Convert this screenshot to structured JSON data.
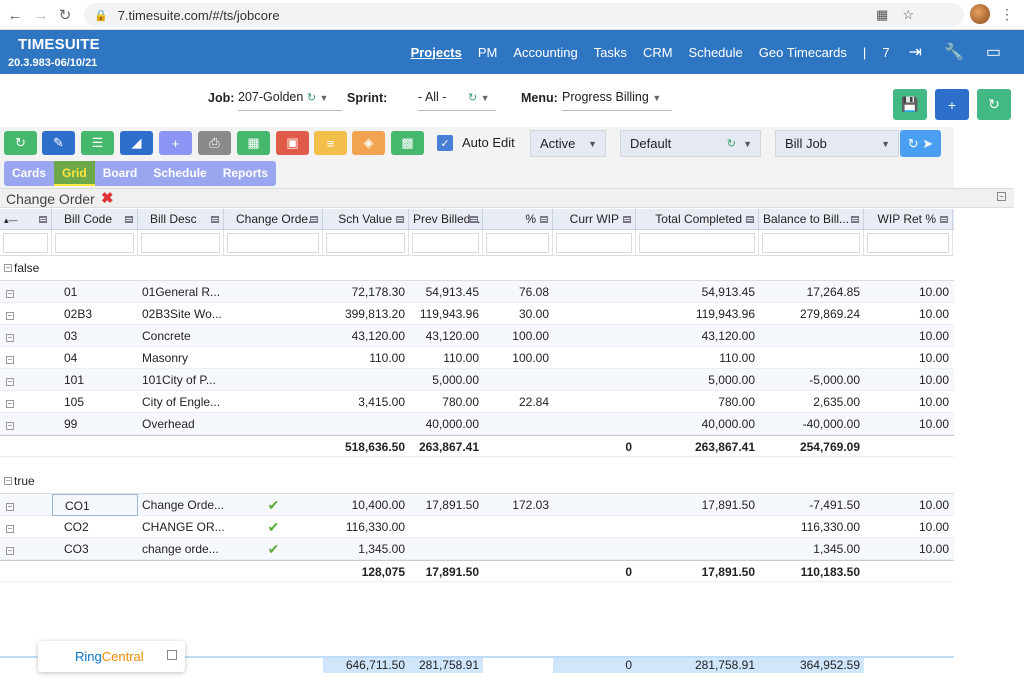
{
  "browser": {
    "url": "7.timesuite.com/#/ts/jobcore"
  },
  "app": {
    "brand": "TIMESUITE",
    "version": "20.3.983-06/10/21",
    "nav": [
      "Projects",
      "PM",
      "Accounting",
      "Tasks",
      "CRM",
      "Schedule",
      "Geo Timecards"
    ],
    "nav_active": "Projects",
    "separator": "|",
    "count": "7"
  },
  "filters": {
    "job_label": "Job:",
    "job_value": "207-Golden",
    "sprint_label": "Sprint:",
    "sprint_value": "- All -",
    "menu_label": "Menu:",
    "menu_value": "Progress Billing"
  },
  "toolbar": {
    "auto_edit_label": "Auto Edit",
    "status_value": "Active",
    "layout_value": "Default",
    "action_value": "Bill Job",
    "view_tabs": [
      "Cards",
      "Grid",
      "Board",
      "Schedule",
      "Reports"
    ],
    "active_view": "Grid"
  },
  "group_by": {
    "label": "Change Order"
  },
  "grid": {
    "columns": [
      "",
      "Bill Code",
      "Bill Desc",
      "Change Orde...",
      "Sch Value",
      "Prev Billed...",
      "%",
      "Curr WIP",
      "Total Completed",
      "Balance to Bill...",
      "WIP Ret %"
    ],
    "groups": [
      {
        "label": "false",
        "rows": [
          {
            "code": "01",
            "desc": "01General R...",
            "co": false,
            "sch": "72,178.30",
            "prev": "54,913.45",
            "pct": "76.08",
            "wip": "",
            "total": "54,913.45",
            "bal": "17,264.85",
            "ret": "10.00"
          },
          {
            "code": "02B3",
            "desc": "02B3Site Wo...",
            "co": false,
            "sch": "399,813.20",
            "prev": "119,943.96",
            "pct": "30.00",
            "wip": "",
            "total": "119,943.96",
            "bal": "279,869.24",
            "ret": "10.00"
          },
          {
            "code": "03",
            "desc": "Concrete",
            "co": false,
            "sch": "43,120.00",
            "prev": "43,120.00",
            "pct": "100.00",
            "wip": "",
            "total": "43,120.00",
            "bal": "",
            "ret": "10.00"
          },
          {
            "code": "04",
            "desc": "Masonry",
            "co": false,
            "sch": "110.00",
            "prev": "110.00",
            "pct": "100.00",
            "wip": "",
            "total": "110.00",
            "bal": "",
            "ret": "10.00"
          },
          {
            "code": "101",
            "desc": "101City of P...",
            "co": false,
            "sch": "",
            "prev": "5,000.00",
            "pct": "",
            "wip": "",
            "total": "5,000.00",
            "bal": "-5,000.00",
            "ret": "10.00"
          },
          {
            "code": "105",
            "desc": "City of Engle...",
            "co": false,
            "sch": "3,415.00",
            "prev": "780.00",
            "pct": "22.84",
            "wip": "",
            "total": "780.00",
            "bal": "2,635.00",
            "ret": "10.00"
          },
          {
            "code": "99",
            "desc": "Overhead",
            "co": false,
            "sch": "",
            "prev": "40,000.00",
            "pct": "",
            "wip": "",
            "total": "40,000.00",
            "bal": "-40,000.00",
            "ret": "10.00"
          }
        ],
        "sum": {
          "sch": "518,636.50",
          "prev": "263,867.41",
          "wip": "0",
          "total": "263,867.41",
          "bal": "254,769.09"
        }
      },
      {
        "label": "true",
        "rows": [
          {
            "code": "CO1",
            "desc": "Change Orde...",
            "co": true,
            "sch": "10,400.00",
            "prev": "17,891.50",
            "pct": "172.03",
            "wip": "",
            "total": "17,891.50",
            "bal": "-7,491.50",
            "ret": "10.00"
          },
          {
            "code": "CO2",
            "desc": "CHANGE OR...",
            "co": true,
            "sch": "116,330.00",
            "prev": "",
            "pct": "",
            "wip": "",
            "total": "",
            "bal": "116,330.00",
            "ret": "10.00"
          },
          {
            "code": "CO3",
            "desc": "change orde...",
            "co": true,
            "sch": "1,345.00",
            "prev": "",
            "pct": "",
            "wip": "",
            "total": "",
            "bal": "1,345.00",
            "ret": "10.00"
          }
        ],
        "sum": {
          "sch": "128,075",
          "prev": "17,891.50",
          "wip": "0",
          "total": "17,891.50",
          "bal": "110,183.50"
        }
      }
    ],
    "grand_total": {
      "sch": "646,711.50",
      "prev": "281,758.91",
      "wip": "0",
      "total": "281,758.91",
      "bal": "364,952.59"
    }
  },
  "widget": {
    "brand_a": "Ring",
    "brand_b": "Central"
  },
  "colors": {
    "header_blue": "#2f76c2",
    "accent_green": "#3aa36f",
    "save_green": "#42b883",
    "add_blue": "#2f6fcc"
  }
}
